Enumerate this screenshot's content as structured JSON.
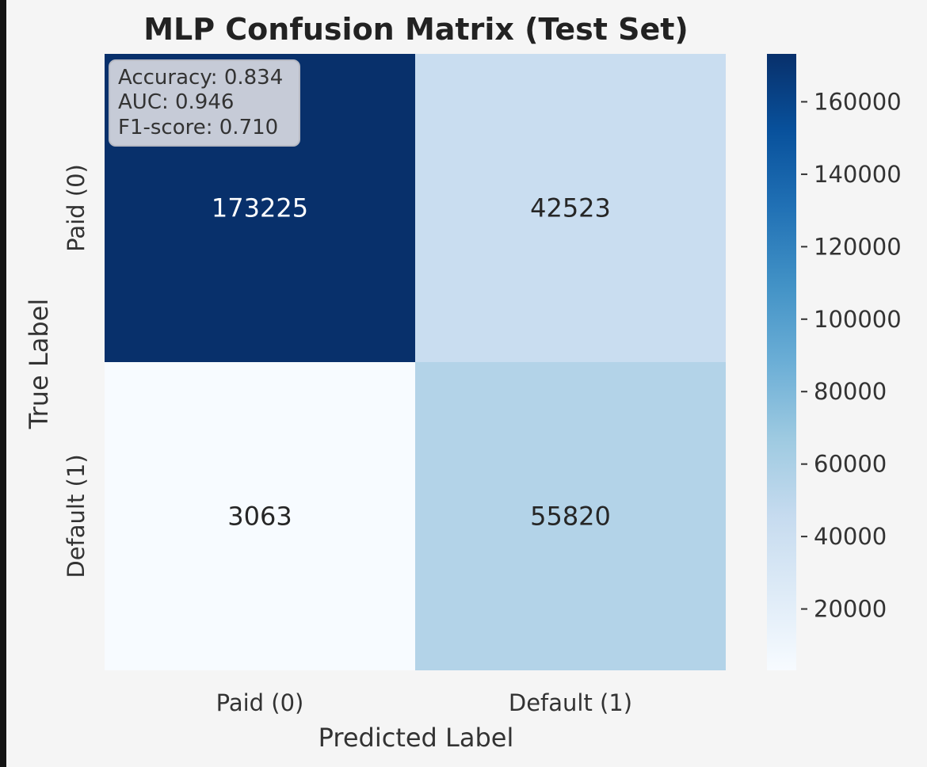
{
  "chart_data": {
    "type": "heatmap",
    "title": "MLP Confusion Matrix (Test Set)",
    "xlabel": "Predicted Label",
    "ylabel": "True Label",
    "x_categories": [
      "Paid (0)",
      "Default (1)"
    ],
    "y_categories": [
      "Paid (0)",
      "Default (1)"
    ],
    "matrix": [
      [
        173225,
        42523
      ],
      [
        3063,
        55820
      ]
    ],
    "colorscale": "Blues",
    "colorbar": {
      "min": 3063,
      "max": 173225,
      "ticks": [
        20000,
        40000,
        60000,
        80000,
        100000,
        120000,
        140000,
        160000
      ]
    },
    "annotation_lines": [
      "Accuracy: 0.834",
      "AUC: 0.946",
      "F1-score: 0.710"
    ],
    "legend": "none",
    "grid": false
  }
}
